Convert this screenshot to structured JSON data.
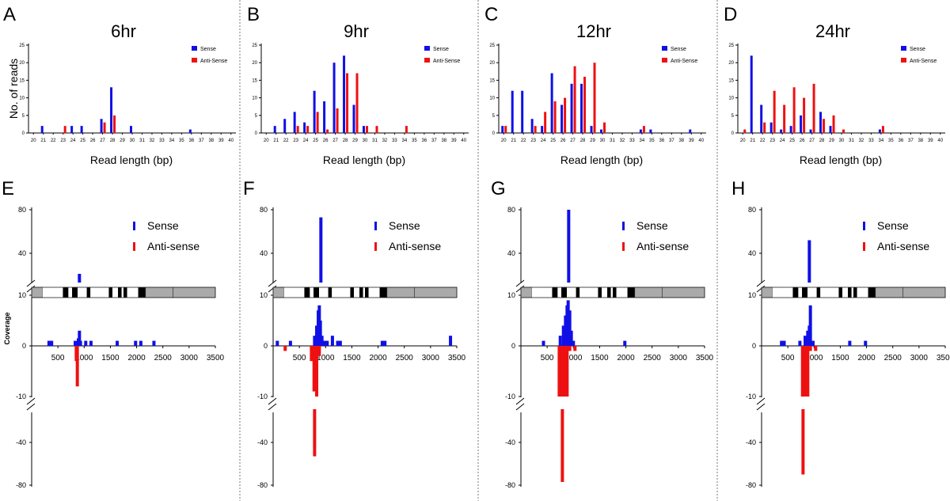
{
  "colors": {
    "sense": "#1010e6",
    "antisense": "#ee1111",
    "gene_box": "#a6a6a6",
    "axis": "#000000",
    "separator": "#777777"
  },
  "chart_data": [
    {
      "panel": "A",
      "type": "bar",
      "title": "6hr",
      "ylabel": "No. of reads",
      "xlabel": "Read length (bp)",
      "ylim": [
        0,
        25
      ],
      "yticks": [
        "0",
        "5",
        "10",
        "15",
        "20",
        "25"
      ],
      "categories": [
        "20",
        "21",
        "22",
        "23",
        "24",
        "25",
        "26",
        "27",
        "28",
        "29",
        "30",
        "31",
        "32",
        "33",
        "34",
        "35",
        "36",
        "37",
        "38",
        "39",
        "40"
      ],
      "series": [
        {
          "name": "Sense",
          "values": [
            0,
            2,
            0,
            0,
            2,
            2,
            0,
            4,
            13,
            0,
            2,
            0,
            0,
            0,
            0,
            0,
            1,
            0,
            0,
            0,
            0
          ]
        },
        {
          "name": "Anti-Sense",
          "values": [
            0,
            0,
            0,
            2,
            0,
            0,
            0,
            3,
            5,
            0,
            0,
            0,
            0,
            0,
            0,
            0,
            0,
            0,
            0,
            0,
            0
          ]
        }
      ],
      "legend": [
        "Sense",
        "Anti-Sense"
      ]
    },
    {
      "panel": "B",
      "type": "bar",
      "title": "9hr",
      "ylabel": "",
      "xlabel": "Read length (bp)",
      "ylim": [
        0,
        25
      ],
      "yticks": [
        "0",
        "5",
        "10",
        "15",
        "20",
        "25"
      ],
      "categories": [
        "20",
        "21",
        "22",
        "23",
        "24",
        "25",
        "26",
        "27",
        "28",
        "29",
        "30",
        "31",
        "32",
        "33",
        "34",
        "35",
        "36",
        "37",
        "38",
        "39",
        "40"
      ],
      "series": [
        {
          "name": "Sense",
          "values": [
            0,
            2,
            4,
            6,
            3,
            12,
            9,
            20,
            22,
            8,
            2,
            0,
            0,
            0,
            0,
            0,
            0,
            0,
            0,
            0,
            0
          ]
        },
        {
          "name": "Anti-Sense",
          "values": [
            0,
            0,
            0,
            2,
            2,
            6,
            1,
            7,
            17,
            17,
            2,
            2,
            0,
            0,
            2,
            0,
            0,
            0,
            0,
            0,
            0
          ]
        }
      ],
      "legend": [
        "Sense",
        "Anti-Sense"
      ]
    },
    {
      "panel": "C",
      "type": "bar",
      "title": "12hr",
      "ylabel": "",
      "xlabel": "Read length (bp)",
      "ylim": [
        0,
        25
      ],
      "yticks": [
        "0",
        "5",
        "10",
        "15",
        "20",
        "25"
      ],
      "categories": [
        "20",
        "21",
        "22",
        "23",
        "24",
        "25",
        "26",
        "27",
        "28",
        "29",
        "30",
        "31",
        "32",
        "33",
        "34",
        "35",
        "36",
        "37",
        "38",
        "39",
        "40"
      ],
      "series": [
        {
          "name": "Sense",
          "values": [
            2,
            12,
            12,
            4,
            2,
            17,
            8,
            14,
            14,
            2,
            1,
            0,
            0,
            0,
            1,
            1,
            0,
            0,
            0,
            1,
            0
          ]
        },
        {
          "name": "Anti-Sense",
          "values": [
            2,
            0,
            0,
            2,
            6,
            9,
            10,
            19,
            16,
            20,
            3,
            0,
            0,
            0,
            2,
            0,
            0,
            0,
            0,
            0,
            0
          ]
        }
      ],
      "legend": [
        "Sense",
        "Anti-Sense"
      ]
    },
    {
      "panel": "D",
      "type": "bar",
      "title": "24hr",
      "ylabel": "",
      "xlabel": "Read length (bp)",
      "ylim": [
        0,
        25
      ],
      "yticks": [
        "0",
        "5",
        "10",
        "15",
        "20",
        "25"
      ],
      "categories": [
        "20",
        "21",
        "22",
        "23",
        "24",
        "25",
        "26",
        "27",
        "28",
        "29",
        "30",
        "31",
        "32",
        "33",
        "34",
        "35",
        "36",
        "37",
        "38",
        "39",
        "40"
      ],
      "series": [
        {
          "name": "Sense",
          "values": [
            0,
            22,
            8,
            3,
            1,
            2,
            5,
            1,
            6,
            2,
            0,
            0,
            0,
            0,
            1,
            0,
            0,
            0,
            0,
            0,
            0
          ]
        },
        {
          "name": "Anti-Sense",
          "values": [
            1,
            0,
            3,
            12,
            8,
            13,
            10,
            14,
            4,
            5,
            1,
            0,
            0,
            0,
            2,
            0,
            0,
            0,
            0,
            0,
            0
          ]
        }
      ],
      "legend": [
        "Sense",
        "Anti-Sense"
      ]
    },
    {
      "panel": "E",
      "type": "bar",
      "ylabel": "Coverage",
      "xlabel": "",
      "xlim": [
        0,
        3500
      ],
      "xticks": [
        "500",
        "1000",
        "1500",
        "2000",
        "2500",
        "3000",
        "3500"
      ],
      "yticks_top": [
        "40",
        "80"
      ],
      "yticks_mid": [
        "0",
        "10",
        "-10"
      ],
      "yticks_bottom": [
        "-40",
        "-80"
      ],
      "legend": [
        "Sense",
        "Anti-sense"
      ],
      "sense": [
        [
          300,
          1
        ],
        [
          350,
          1
        ],
        [
          800,
          1
        ],
        [
          860,
          1.5
        ],
        [
          880,
          3
        ],
        [
          900,
          1
        ],
        [
          1000,
          1
        ],
        [
          1100,
          1
        ],
        [
          1600,
          1
        ],
        [
          1950,
          1
        ],
        [
          2050,
          1
        ],
        [
          2300,
          1
        ]
      ],
      "sense_peak": 15,
      "antisense": [
        [
          820,
          -3
        ],
        [
          840,
          -8
        ]
      ],
      "antisense_peak": -8
    },
    {
      "panel": "F",
      "type": "bar",
      "ylabel": "",
      "xlabel": "",
      "xlim": [
        0,
        3500
      ],
      "xticks": [
        "500",
        "1000",
        "1500",
        "2000",
        "2500",
        "3000",
        "3500"
      ],
      "yticks_top": [
        "40",
        "80"
      ],
      "yticks_mid": [
        "0",
        "10",
        "-10"
      ],
      "yticks_bottom": [
        "-40",
        "-80"
      ],
      "legend": [
        "Sense",
        "Anti-sense"
      ],
      "sense": [
        [
          50,
          1
        ],
        [
          300,
          1
        ],
        [
          760,
          2
        ],
        [
          800,
          4
        ],
        [
          830,
          7
        ],
        [
          850,
          8
        ],
        [
          870,
          5
        ],
        [
          900,
          2
        ],
        [
          950,
          1
        ],
        [
          1000,
          1
        ],
        [
          1100,
          2
        ],
        [
          1200,
          1
        ],
        [
          1250,
          1
        ],
        [
          2050,
          1
        ],
        [
          2100,
          1
        ],
        [
          3350,
          2
        ]
      ],
      "sense_peak": 73,
      "antisense": [
        [
          200,
          -1
        ],
        [
          700,
          -3
        ],
        [
          750,
          -9
        ],
        [
          800,
          -10
        ],
        [
          850,
          -2
        ]
      ],
      "antisense_peak": -53
    },
    {
      "panel": "G",
      "type": "bar",
      "ylabel": "",
      "xlabel": "",
      "xlim": [
        0,
        3500
      ],
      "xticks": [
        "500",
        "1000",
        "1500",
        "2000",
        "2500",
        "3000",
        "3500"
      ],
      "yticks_top": [
        "40",
        "80"
      ],
      "yticks_mid": [
        "0",
        "10",
        "-10"
      ],
      "yticks_bottom": [
        "-40",
        "-80"
      ],
      "legend": [
        "Sense",
        "Anti-sense"
      ],
      "sense": [
        [
          400,
          1
        ],
        [
          720,
          2
        ],
        [
          780,
          4
        ],
        [
          820,
          6
        ],
        [
          850,
          8
        ],
        [
          870,
          9
        ],
        [
          900,
          7
        ],
        [
          930,
          3
        ],
        [
          970,
          1
        ],
        [
          1950,
          1
        ]
      ],
      "sense_peak": 80,
      "antisense": [
        [
          700,
          -10
        ],
        [
          750,
          -10
        ],
        [
          800,
          -10
        ],
        [
          850,
          -10
        ],
        [
          900,
          -1
        ],
        [
          1000,
          -1
        ]
      ],
      "antisense_peak": -77
    },
    {
      "panel": "H",
      "type": "bar",
      "ylabel": "",
      "xlabel": "",
      "xlim": [
        0,
        3500
      ],
      "xticks": [
        "500",
        "1000",
        "1500",
        "2000",
        "2500",
        "3000",
        "3500"
      ],
      "yticks_top": [
        "40",
        "80"
      ],
      "yticks_mid": [
        "0",
        "10",
        "-10"
      ],
      "yticks_bottom": [
        "-40",
        "-80"
      ],
      "legend": [
        "Sense",
        "Anti-sense"
      ],
      "sense": [
        [
          350,
          1
        ],
        [
          400,
          1
        ],
        [
          700,
          1
        ],
        [
          800,
          2
        ],
        [
          850,
          3
        ],
        [
          880,
          4
        ],
        [
          900,
          8
        ],
        [
          950,
          1
        ],
        [
          1650,
          1
        ],
        [
          1950,
          1
        ]
      ],
      "sense_peak": 52,
      "antisense": [
        [
          750,
          -10
        ],
        [
          800,
          -10
        ],
        [
          850,
          -10
        ],
        [
          900,
          -1
        ],
        [
          1000,
          -1
        ]
      ],
      "antisense_peak": -70
    }
  ]
}
